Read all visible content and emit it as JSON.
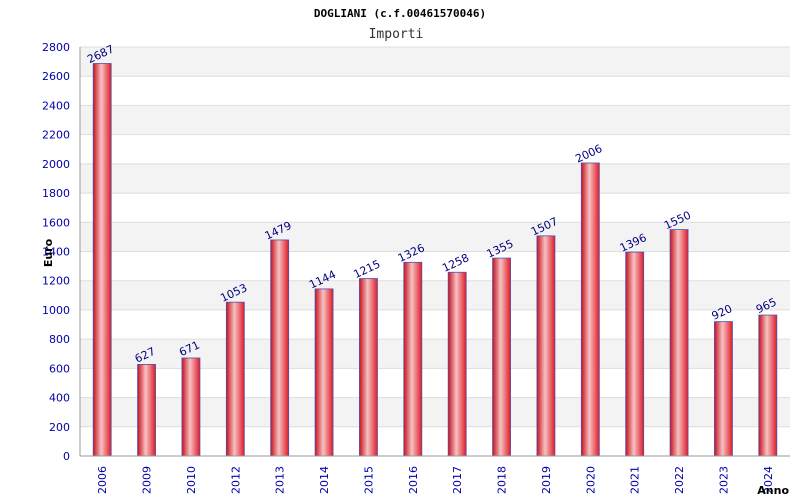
{
  "chart_data": {
    "type": "bar",
    "title": "DOGLIANI (c.f.00461570046)",
    "subtitle": "Importi",
    "ylabel": "Euro",
    "xlabel": "Anno",
    "ylim": [
      0,
      2800
    ],
    "yticks": [
      0,
      200,
      400,
      600,
      800,
      1000,
      1200,
      1400,
      1600,
      1800,
      2000,
      2200,
      2400,
      2600,
      2800
    ],
    "categories": [
      "2006",
      "2009",
      "2010",
      "2012",
      "2013",
      "2014",
      "2015",
      "2016",
      "2017",
      "2018",
      "2019",
      "2020",
      "2021",
      "2022",
      "2023",
      "2024"
    ],
    "values": [
      2687,
      627,
      671,
      1053,
      1479,
      1144,
      1215,
      1326,
      1258,
      1355,
      1507,
      2006,
      1396,
      1550,
      920,
      965
    ],
    "grid": true,
    "colors": {
      "bar": "#e8202a",
      "bar_highlight": "#f4b4b4",
      "bar_edge": "#5050b0",
      "band_alt": "#f3f3f3",
      "tick_text": "#0000aa",
      "data_label": "#000080"
    }
  }
}
